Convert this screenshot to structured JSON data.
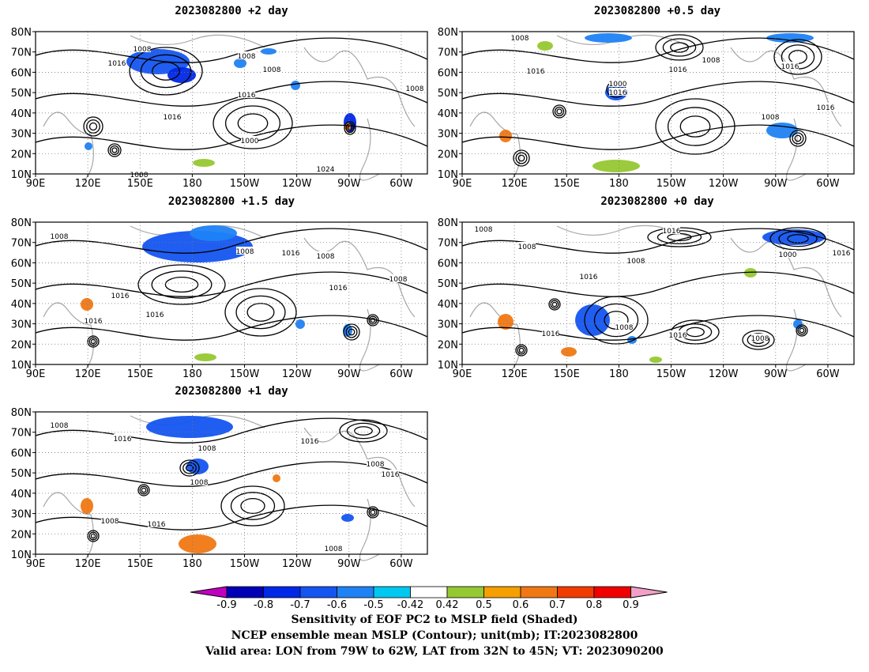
{
  "panels": [
    {
      "id": "p2",
      "title": "2023082800 +2 day"
    },
    {
      "id": "p05",
      "title": "2023082800 +0.5 day"
    },
    {
      "id": "p15",
      "title": "2023082800 +1.5 day"
    },
    {
      "id": "p0",
      "title": "2023082800 +0 day"
    },
    {
      "id": "p1",
      "title": "2023082800 +1 day"
    }
  ],
  "map": {
    "lat_labels": [
      "80N",
      "70N",
      "60N",
      "50N",
      "40N",
      "30N",
      "20N",
      "10N"
    ],
    "lon_labels": [
      "90E",
      "120E",
      "150E",
      "180",
      "150W",
      "120W",
      "90W",
      "60W"
    ],
    "lon_range": [
      "90E",
      "45W"
    ],
    "lat_range": [
      "10N",
      "80N"
    ]
  },
  "contour_labels": {
    "p2": [
      "1008",
      "1016",
      "1008",
      "1008",
      "1016",
      "1016",
      "1000",
      "1024",
      "1008",
      "1008"
    ],
    "p05": [
      "1008",
      "1016",
      "1008",
      "1016",
      "1016",
      "1000",
      "1016",
      "1016",
      "1008"
    ],
    "p15": [
      "1008",
      "1008",
      "1016",
      "1008",
      "1016",
      "1016",
      "1008",
      "1016",
      "1016"
    ],
    "p0": [
      "1008",
      "1016",
      "1008",
      "1008",
      "1016",
      "1000",
      "1016",
      "1016",
      "1008",
      "1016",
      "1008"
    ],
    "p1": [
      "1008",
      "1016",
      "1008",
      "1016",
      "1008",
      "1008",
      "1016",
      "1008",
      "1016",
      "1008"
    ]
  },
  "colorbar": {
    "labels": [
      "-0.9",
      "-0.8",
      "-0.7",
      "-0.6",
      "-0.5",
      "-0.42",
      "0.42",
      "0.5",
      "0.6",
      "0.7",
      "0.8",
      "0.9"
    ],
    "low_end_color": "#c000c0",
    "high_end_color": "#f0a0c8",
    "colors": [
      "#0000b4",
      "#0028e6",
      "#1455f0",
      "#1e82f5",
      "#00c8f0",
      "#ffffff",
      "#96c832",
      "#f5a000",
      "#f07814",
      "#f03c00",
      "#f00000"
    ]
  },
  "footer": {
    "line1": "Sensitivity of EOF PC2 to MSLP field (Shaded)",
    "line2": "NCEP ensemble mean MSLP (Contour); unit(mb); IT:2023082800",
    "line3": "Valid area: LON from 79W to 62W, LAT from 32N to 45N; VT: 2023090200"
  }
}
